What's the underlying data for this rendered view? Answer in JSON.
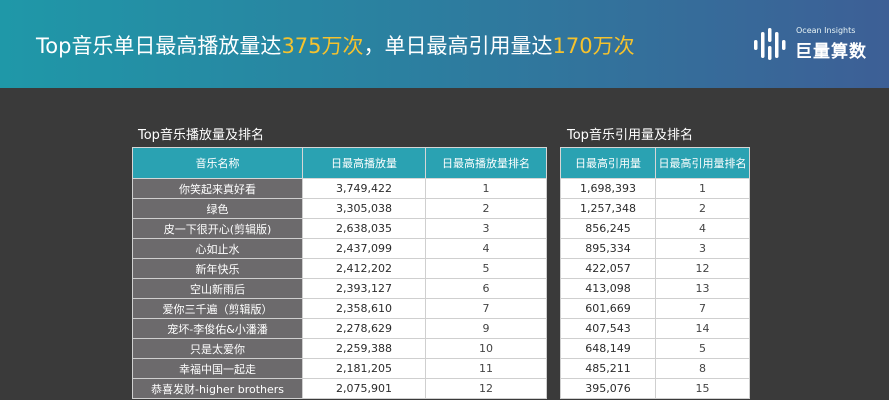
{
  "header": {
    "headline_part1": "Top音乐单日最高播放量达",
    "headline_highlight1": "375万次",
    "headline_part2": "，单日最高引用量达",
    "headline_highlight2": "170万次",
    "logo_en": "Ocean Insights",
    "logo_cn": "巨量算数",
    "accent_color": "#f5c22d"
  },
  "play_table": {
    "title": "Top音乐播放量及排名",
    "columns": [
      "音乐名称",
      "日最高播放量",
      "日最高播放量排名"
    ],
    "rows": [
      {
        "name": "你笑起来真好看",
        "value": "3,749,422",
        "rank": "1"
      },
      {
        "name": "绿色",
        "value": "3,305,038",
        "rank": "2"
      },
      {
        "name": "皮一下很开心(剪辑版)",
        "value": "2,638,035",
        "rank": "3"
      },
      {
        "name": "心如止水",
        "value": "2,437,099",
        "rank": "4"
      },
      {
        "name": "新年快乐",
        "value": "2,412,202",
        "rank": "5"
      },
      {
        "name": "空山新雨后",
        "value": "2,393,127",
        "rank": "6"
      },
      {
        "name": "爱你三千遍（剪辑版）",
        "value": "2,358,610",
        "rank": "7"
      },
      {
        "name": "宠坏-李俊佑&小潘潘",
        "value": "2,278,629",
        "rank": "9"
      },
      {
        "name": "只是太爱你",
        "value": "2,259,388",
        "rank": "10"
      },
      {
        "name": "幸福中国一起走",
        "value": "2,181,205",
        "rank": "11"
      },
      {
        "name": "恭喜发财-higher brothers",
        "value": "2,075,901",
        "rank": "12"
      }
    ]
  },
  "cite_table": {
    "title": "Top音乐引用量及排名",
    "columns": [
      "日最高引用量",
      "日最高引用量排名"
    ],
    "rows": [
      {
        "value": "1,698,393",
        "rank": "1"
      },
      {
        "value": "1,257,348",
        "rank": "2"
      },
      {
        "value": "856,245",
        "rank": "4"
      },
      {
        "value": "895,334",
        "rank": "3"
      },
      {
        "value": "422,057",
        "rank": "12"
      },
      {
        "value": "413,098",
        "rank": "13"
      },
      {
        "value": "601,669",
        "rank": "7"
      },
      {
        "value": "407,543",
        "rank": "14"
      },
      {
        "value": "648,149",
        "rank": "5"
      },
      {
        "value": "485,211",
        "rank": "8"
      },
      {
        "value": "395,076",
        "rank": "15"
      }
    ]
  }
}
